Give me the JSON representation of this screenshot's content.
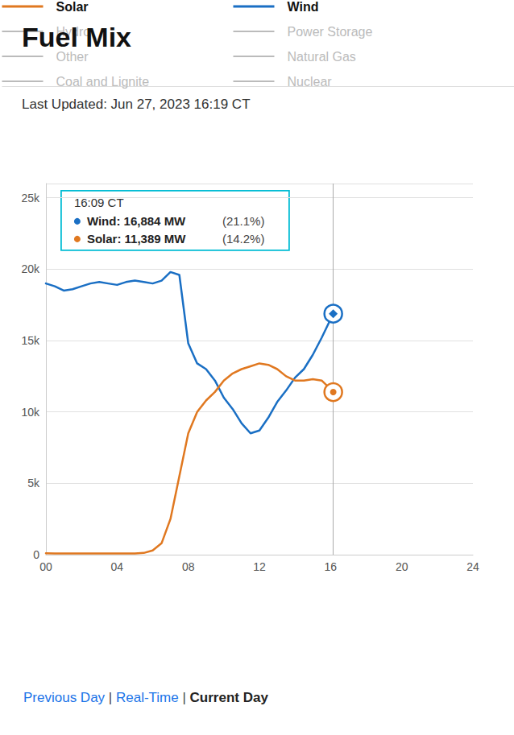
{
  "chart_data": {
    "type": "line",
    "title": "Fuel Mix",
    "subtitle": "Last Updated: Jun 27, 2023 16:19 CT",
    "x": [
      0,
      0.5,
      1,
      1.5,
      2,
      2.5,
      3,
      3.5,
      4,
      4.5,
      5,
      5.5,
      6,
      6.5,
      7,
      7.5,
      8,
      8.5,
      9,
      9.5,
      10,
      10.5,
      11,
      11.5,
      12,
      12.5,
      13,
      13.5,
      14,
      14.5,
      15,
      15.5,
      16,
      16.15
    ],
    "series": [
      {
        "name": "Wind",
        "color": "#1a6fc4",
        "marker": "diamond",
        "values": [
          19000,
          18800,
          18500,
          18600,
          18800,
          19000,
          19100,
          19000,
          18900,
          19100,
          19200,
          19100,
          19000,
          19200,
          19800,
          19600,
          14800,
          13400,
          13000,
          12200,
          11000,
          10200,
          9200,
          8500,
          8700,
          9600,
          10700,
          11500,
          12400,
          13000,
          14000,
          15200,
          16500,
          16884
        ]
      },
      {
        "name": "Solar",
        "color": "#e07820",
        "marker": "circle",
        "values": [
          100,
          80,
          80,
          80,
          80,
          80,
          80,
          80,
          80,
          80,
          80,
          120,
          300,
          800,
          2500,
          5500,
          8500,
          10000,
          10800,
          11400,
          12200,
          12700,
          13000,
          13200,
          13400,
          13300,
          13000,
          12500,
          12200,
          12200,
          12300,
          12200,
          11600,
          11389
        ]
      }
    ],
    "xlim": [
      0,
      24
    ],
    "xticks": [
      {
        "value": 0,
        "label": "00"
      },
      {
        "value": 4,
        "label": "04"
      },
      {
        "value": 8,
        "label": "08"
      },
      12,
      16,
      20,
      24
    ],
    "ylim": [
      0,
      26000
    ],
    "yticks": [
      0,
      {
        "value": 5000,
        "label": "5k"
      },
      {
        "value": 10000,
        "label": "10k"
      },
      {
        "value": 15000,
        "label": "15k"
      },
      {
        "value": 20000,
        "label": "20k"
      },
      {
        "value": 25000,
        "label": "25k"
      }
    ],
    "grid": true,
    "vertical_line": {
      "x": 16.15,
      "color": "#aaaaaa"
    },
    "tooltip": {
      "title": "16:09 CT",
      "border_color": "#00bcd4",
      "rows": [
        {
          "series": "Wind",
          "text": "Wind: 16,884 MW",
          "share": "(21.1%)"
        },
        {
          "series": "Solar",
          "text": "Solar: 11,389 MW",
          "share": "(14.2%)"
        }
      ]
    },
    "inactive_legend": {
      "color": "#bbbbbb",
      "items": [
        "Hydro",
        "Power Storage",
        "Other",
        "Natural Gas",
        "Coal and Lignite",
        "Nuclear"
      ]
    },
    "footer": [
      {
        "text": "Previous Day",
        "color": "#1a73e8",
        "bold": false
      },
      {
        "text": " | ",
        "color": "#444444",
        "bold": false
      },
      {
        "text": "Real-Time",
        "color": "#1a73e8",
        "bold": false
      },
      {
        "text": " | ",
        "color": "#444444",
        "bold": false
      },
      {
        "text": "Current Day",
        "color": "#222222",
        "bold": true
      }
    ]
  }
}
